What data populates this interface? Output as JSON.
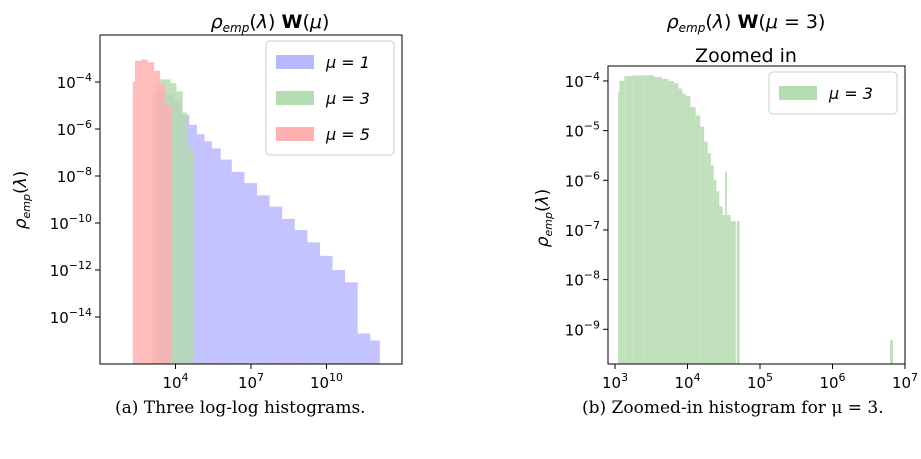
{
  "charts": [
    {
      "title": "ρemp(λ)  W(μ)",
      "ylabel": "ρemp(λ)",
      "xticks": [
        {
          "exp": 4,
          "label": "10^4"
        },
        {
          "exp": 7,
          "label": "10^7"
        },
        {
          "exp": 10,
          "label": "10^10"
        }
      ],
      "yticks": [
        {
          "exp": -4,
          "label": "10^-4"
        },
        {
          "exp": -6,
          "label": "10^-6"
        },
        {
          "exp": -8,
          "label": "10^-8"
        },
        {
          "exp": -10,
          "label": "10^-10"
        },
        {
          "exp": -12,
          "label": "10^-12"
        },
        {
          "exp": -14,
          "label": "10^-14"
        }
      ],
      "legend": [
        "μ = 1",
        "μ = 3",
        "μ = 5"
      ],
      "caption": "(a) Three log-log histograms."
    },
    {
      "title": "ρemp(λ) W(μ = 3)",
      "subtitle": "Zoomed in",
      "ylabel": "ρemp(λ)",
      "xticks": [
        {
          "exp": 3,
          "label": "10^3"
        },
        {
          "exp": 4,
          "label": "10^4"
        },
        {
          "exp": 5,
          "label": "10^5"
        },
        {
          "exp": 6,
          "label": "10^6"
        },
        {
          "exp": 7,
          "label": "10^7"
        }
      ],
      "yticks": [
        {
          "exp": -4,
          "label": "10^-4"
        },
        {
          "exp": -5,
          "label": "10^-5"
        },
        {
          "exp": -6,
          "label": "10^-6"
        },
        {
          "exp": -7,
          "label": "10^-7"
        },
        {
          "exp": -8,
          "label": "10^-8"
        },
        {
          "exp": -9,
          "label": "10^-9"
        }
      ],
      "legend": [
        "μ = 3"
      ],
      "caption": "(b) Zoomed-in histogram for μ = 3."
    }
  ],
  "chart_data": [
    {
      "type": "histogram",
      "title": "ρemp(λ)  W(μ)",
      "ylabel": "ρemp(λ)",
      "xscale": "log",
      "yscale": "log",
      "xlim": [
        10,
        10000000000000
      ],
      "ylim": [
        1e-16,
        0.01
      ],
      "legend_position": "top-right",
      "series": [
        {
          "name": "μ = 1",
          "color": "#b8b8ff",
          "points": [
            [
              1500.0,
              3e-05
            ],
            [
              3000.0,
              4e-05
            ],
            [
              6000.0,
              3e-05
            ],
            [
              12000.0,
              1.5e-05
            ],
            [
              25000.0,
              4e-06
            ],
            [
              50000.0,
              1.5e-06
            ],
            [
              100000.0,
              6e-07
            ],
            [
              200000.0,
              3e-07
            ],
            [
              400000.0,
              1.5e-07
            ],
            [
              1000000.0,
              5e-08
            ],
            [
              3000000.0,
              1.5e-08
            ],
            [
              10000000.0,
              5e-09
            ],
            [
              30000000.0,
              1.5e-09
            ],
            [
              100000000.0,
              5e-10
            ],
            [
              300000000.0,
              1.5e-10
            ],
            [
              1000000000.0,
              5e-11
            ],
            [
              3000000000.0,
              1.5e-11
            ],
            [
              10000000000.0,
              4e-12
            ],
            [
              30000000000.0,
              1e-12
            ],
            [
              100000000000.0,
              3e-13
            ],
            [
              300000000000.0,
              2e-15
            ],
            [
              1000000000000.0,
              1e-15
            ]
          ]
        },
        {
          "name": "μ = 3",
          "color": "#b5dbb0",
          "points": [
            [
              1200.0,
              3e-05
            ],
            [
              2000.0,
              0.0001
            ],
            [
              3000.0,
              0.00013
            ],
            [
              5000.0,
              0.00013
            ],
            [
              8000.0,
              9e-05
            ],
            [
              15000.0,
              4e-05
            ],
            [
              25000.0,
              5e-06
            ],
            [
              32000.0,
              3e-07
            ],
            [
              40000.0,
              1.5e-07
            ]
          ]
        },
        {
          "name": "μ = 5",
          "color": "#ffb0b0",
          "points": [
            [
              200.0,
              0.0001
            ],
            [
              300.0,
              0.0008
            ],
            [
              600.0,
              0.0009
            ],
            [
              1000.0,
              0.0007
            ],
            [
              2000.0,
              0.0003
            ],
            [
              3000.0,
              8e-05
            ],
            [
              5000.0,
              1e-05
            ]
          ]
        }
      ]
    },
    {
      "type": "histogram",
      "title": "ρemp(λ) W(μ = 3)",
      "subtitle": "Zoomed in",
      "ylabel": "ρemp(λ)",
      "xscale": "log",
      "yscale": "log",
      "xlim": [
        800,
        10000000
      ],
      "ylim": [
        2e-10,
        0.0002
      ],
      "legend_position": "top-right",
      "series": [
        {
          "name": "μ = 3",
          "color": "#b5dbb0",
          "points": [
            [
              1100.0,
              6e-05
            ],
            [
              1200.0,
              0.0001
            ],
            [
              1500.0,
              0.000125
            ],
            [
              2000.0,
              0.00013
            ],
            [
              3000.0,
              0.00013
            ],
            [
              4000.0,
              0.00012
            ],
            [
              5000.0,
              0.00011
            ],
            [
              6000.0,
              0.0001
            ],
            [
              7000.0,
              9e-05
            ],
            [
              8000.0,
              7e-05
            ],
            [
              9000.0,
              5.5e-05
            ],
            [
              10000.0,
              5e-05
            ],
            [
              12000.0,
              3e-05
            ],
            [
              14000.0,
              2e-05
            ],
            [
              16000.0,
              1.2e-05
            ],
            [
              18000.0,
              6e-06
            ],
            [
              20000.0,
              3.5e-06
            ],
            [
              22000.0,
              2e-06
            ],
            [
              24000.0,
              1e-06
            ],
            [
              26000.0,
              6e-07
            ],
            [
              29000.0,
              3e-07
            ],
            [
              32000.0,
              2e-07
            ],
            [
              34000.0,
              1.5e-06
            ],
            [
              36000.0,
              2e-07
            ],
            [
              43000.0,
              1.5e-07
            ],
            [
              50000.0,
              1.5e-07
            ],
            [
              6500000.0,
              6e-10
            ]
          ]
        }
      ]
    }
  ]
}
